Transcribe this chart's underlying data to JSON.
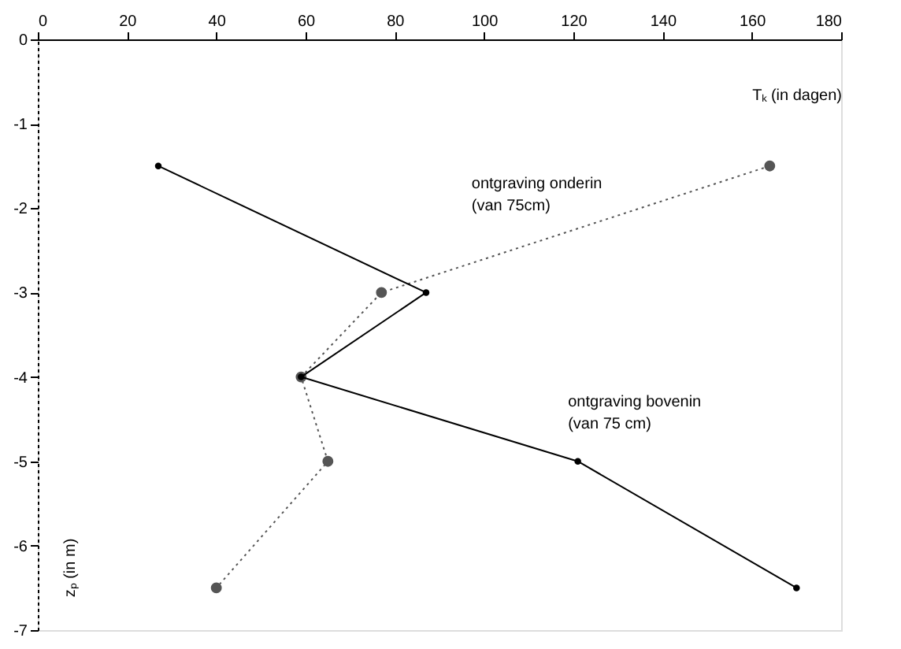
{
  "chart_data": {
    "type": "line",
    "xlabel": "Tₖ (in dagen)",
    "ylabel": "zₚ (in m)",
    "xlim": [
      0,
      180
    ],
    "xticks": [
      0,
      20,
      40,
      60,
      80,
      100,
      120,
      140,
      160,
      180
    ],
    "ylim": [
      -7,
      0
    ],
    "yticks": [
      0,
      -1,
      -2,
      -3,
      -4,
      -5,
      -6,
      -7
    ],
    "grid": false,
    "marker": "circle",
    "series": [
      {
        "color": "#555555",
        "line_style": "dotted",
        "x": [
          164,
          77,
          59,
          65,
          40
        ],
        "values": [
          -1.5,
          -3,
          -4,
          -5,
          -6.5
        ]
      },
      {
        "color": "#000000",
        "line_style": "solid",
        "x": [
          27,
          87,
          59,
          121,
          170
        ],
        "values": [
          -1.5,
          -3,
          -4,
          -5,
          -6.5
        ]
      }
    ],
    "annotations": [
      "ontgraving onderin\n(van 75cm)",
      "ontgraving bovenin\n(van 75 cm)"
    ]
  }
}
